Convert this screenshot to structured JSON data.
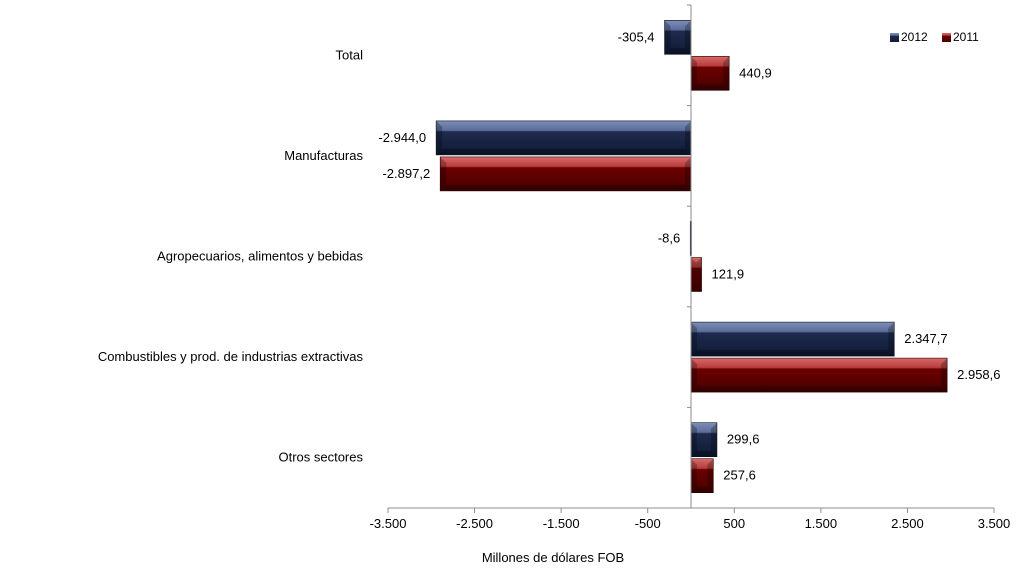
{
  "chart_data": {
    "type": "bar",
    "orientation": "horizontal",
    "categories": [
      "Total",
      "Manufacturas",
      "Agropecuarios, alimentos y bebidas",
      "Combustibles y prod. de industrias extractivas",
      "Otros sectores"
    ],
    "series": [
      {
        "name": "2012",
        "color": "#1f2b4d",
        "values": [
          -305.4,
          -2944.0,
          -8.6,
          2347.7,
          299.6
        ],
        "labels": [
          "-305,4",
          "-2.944,0",
          "-8,6",
          "2.347,7",
          "299,6"
        ]
      },
      {
        "name": "2011",
        "color": "#6b0000",
        "values": [
          440.9,
          -2897.2,
          121.9,
          2958.6,
          257.6
        ],
        "labels": [
          "440,9",
          "-2.897,2",
          "121,9",
          "2.958,6",
          "257,6"
        ]
      }
    ],
    "xlim": [
      -3500,
      3500
    ],
    "xticks": [
      -3500,
      -2500,
      -1500,
      -500,
      500,
      1500,
      2500,
      3500
    ],
    "xtick_labels": [
      "-3.500",
      "-2.500",
      "-1.500",
      "-500",
      "500",
      "1.500",
      "2.500",
      "3.500"
    ],
    "xlabel": "Millones de dólares FOB",
    "ylabel": "",
    "title": "",
    "legend": {
      "placement": "top-right",
      "order": [
        "2012",
        "2011"
      ]
    },
    "grid": false
  }
}
